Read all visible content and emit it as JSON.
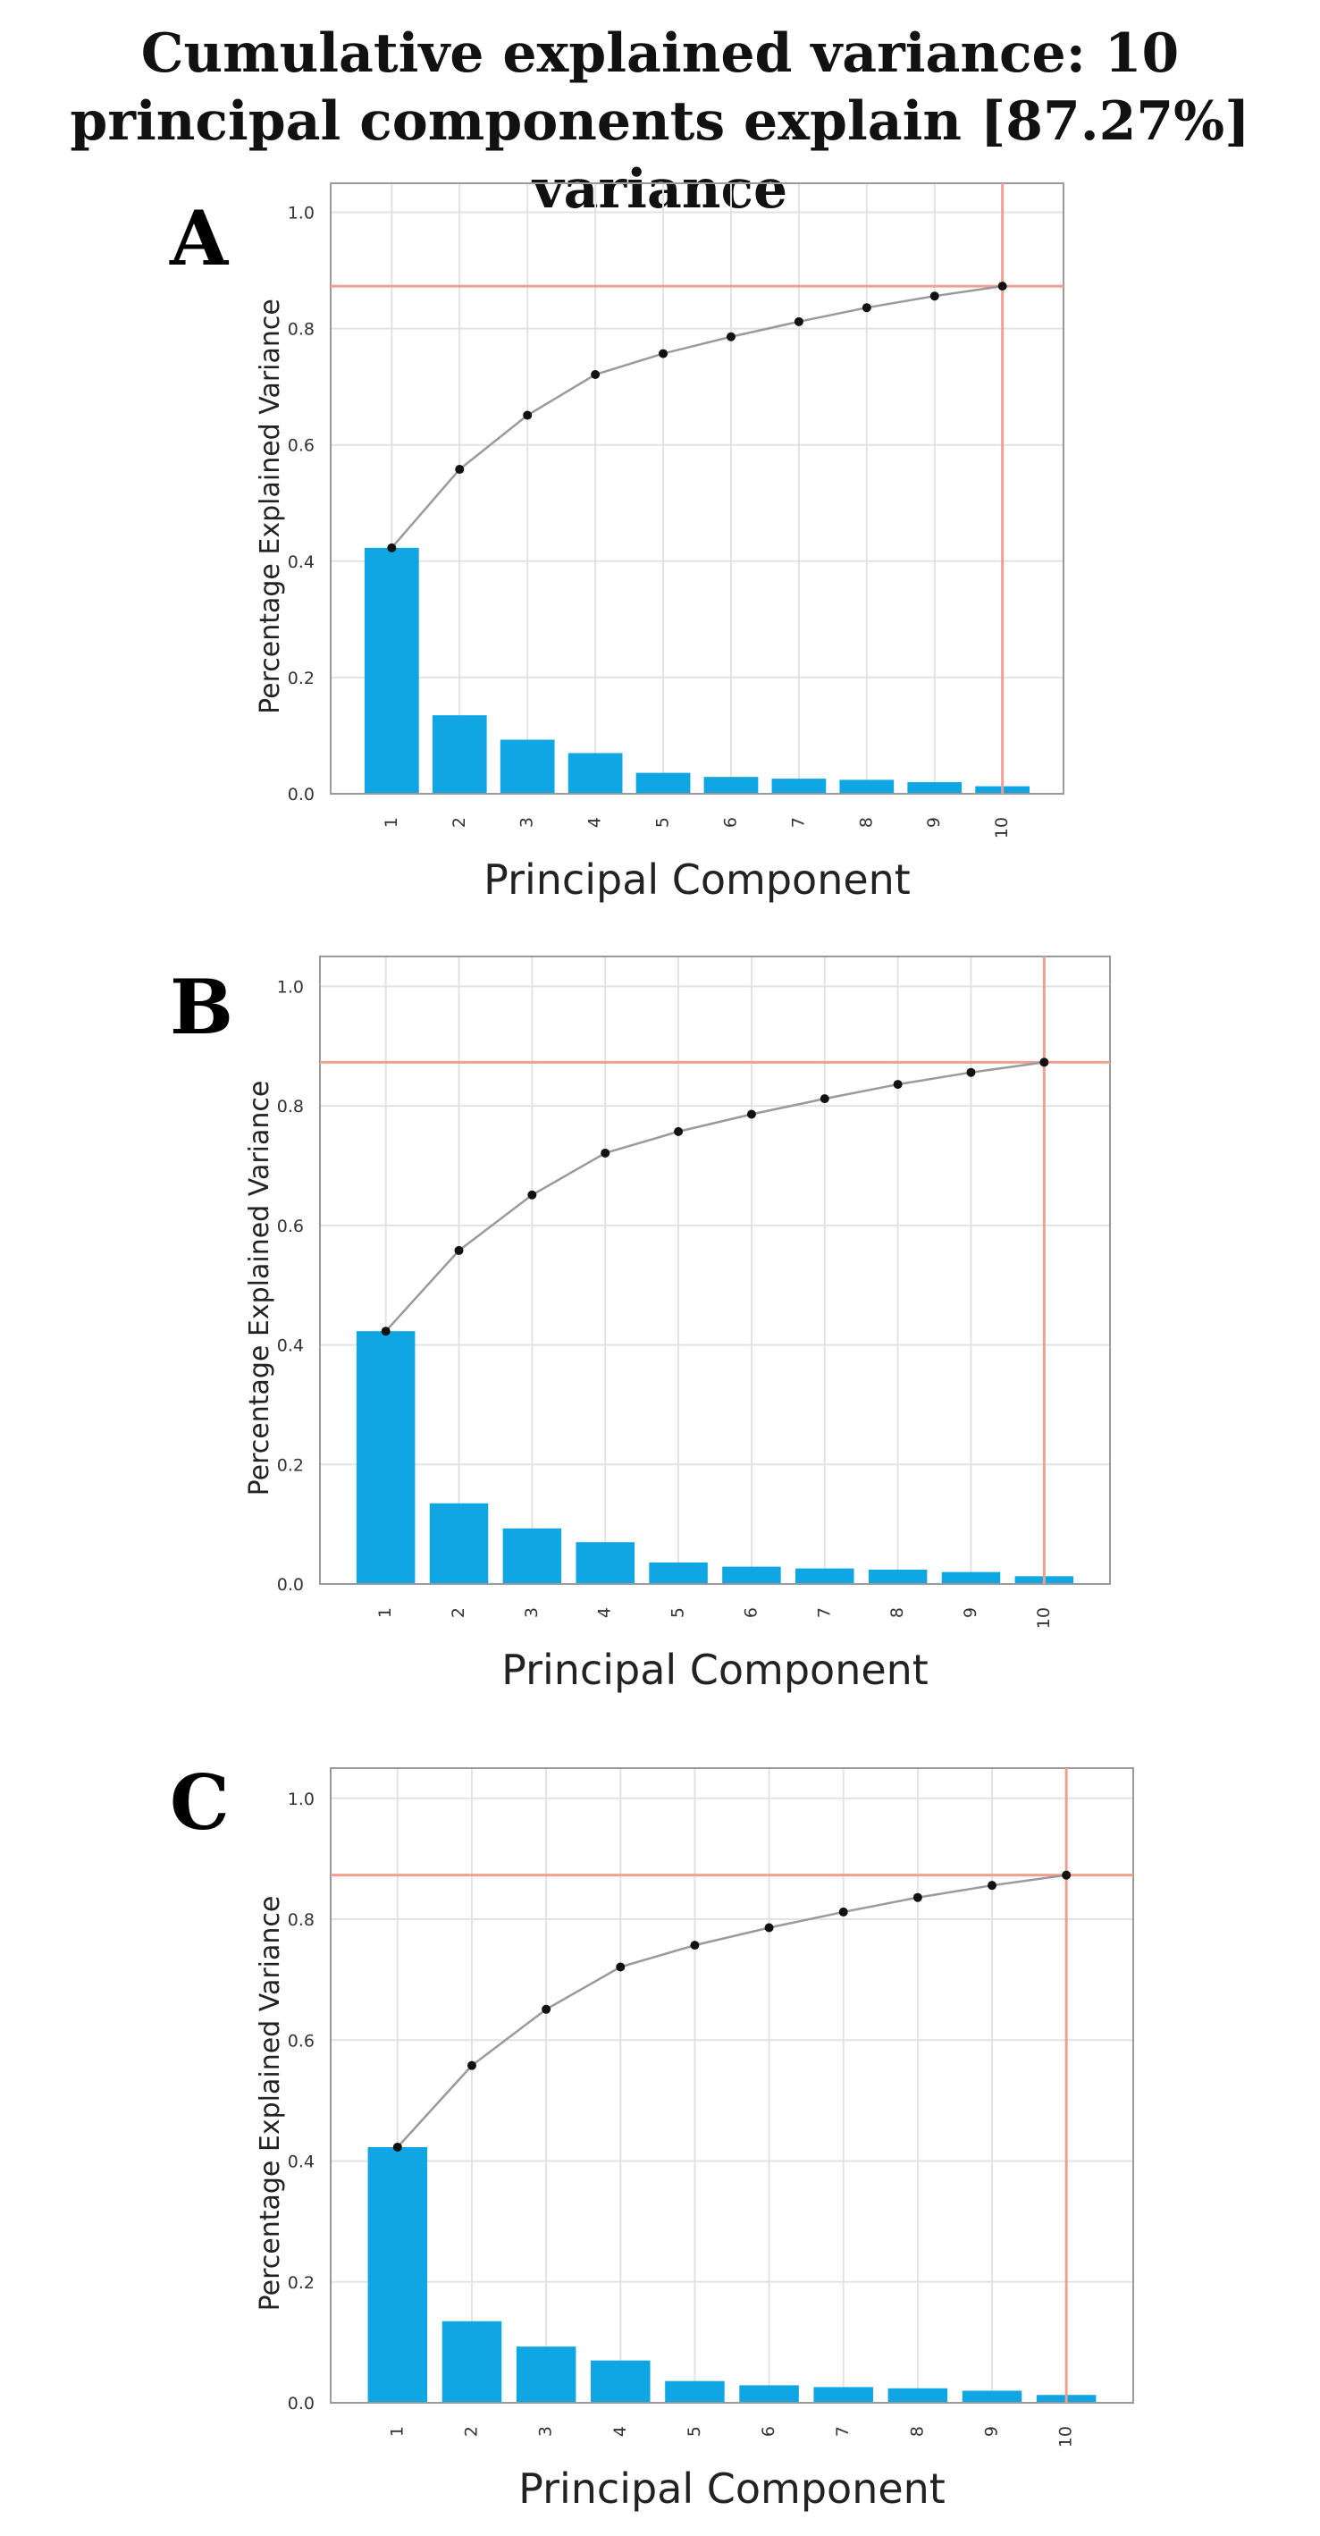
{
  "title": "Cumulative explained variance: 10 principal components explain [87.27%] variance",
  "colors": {
    "bar": "#10a6e4",
    "cumulative_line": "#9a9a9a",
    "marker": "#111111",
    "threshold": "#f0a090",
    "grid": "#e3e3e3",
    "axis_text": "#333333"
  },
  "chart_data": [
    {
      "panel_label": "A",
      "type": "bar",
      "categories": [
        "1",
        "2",
        "3",
        "4",
        "5",
        "6",
        "7",
        "8",
        "9",
        "10"
      ],
      "series": [
        {
          "name": "explained variance",
          "values": [
            0.423,
            0.135,
            0.093,
            0.07,
            0.036,
            0.029,
            0.026,
            0.024,
            0.02,
            0.013
          ]
        },
        {
          "name": "cumulative explained variance",
          "values": [
            0.423,
            0.558,
            0.651,
            0.721,
            0.757,
            0.786,
            0.812,
            0.836,
            0.856,
            0.873
          ]
        }
      ],
      "threshold": {
        "x": "10",
        "y": 0.873
      },
      "xlabel": "Principal Component",
      "ylabel": "Percentage Explained Variance",
      "ylim": [
        0,
        1.05
      ],
      "yticks": [
        "0.0",
        "0.2",
        "0.4",
        "0.6",
        "0.8",
        "1.0"
      ],
      "grid": true
    },
    {
      "panel_label": "B",
      "type": "bar",
      "categories": [
        "1",
        "2",
        "3",
        "4",
        "5",
        "6",
        "7",
        "8",
        "9",
        "10"
      ],
      "series": [
        {
          "name": "explained variance",
          "values": [
            0.423,
            0.135,
            0.093,
            0.07,
            0.036,
            0.029,
            0.026,
            0.024,
            0.02,
            0.013
          ]
        },
        {
          "name": "cumulative explained variance",
          "values": [
            0.423,
            0.558,
            0.651,
            0.721,
            0.757,
            0.786,
            0.812,
            0.836,
            0.856,
            0.873
          ]
        }
      ],
      "threshold": {
        "x": "10",
        "y": 0.873
      },
      "xlabel": "Principal Component",
      "ylabel": "Percentage Explained Variance",
      "ylim": [
        0,
        1.05
      ],
      "yticks": [
        "0.0",
        "0.2",
        "0.4",
        "0.6",
        "0.8",
        "1.0"
      ],
      "grid": true
    },
    {
      "panel_label": "C",
      "type": "bar",
      "categories": [
        "1",
        "2",
        "3",
        "4",
        "5",
        "6",
        "7",
        "8",
        "9",
        "10"
      ],
      "series": [
        {
          "name": "explained variance",
          "values": [
            0.423,
            0.135,
            0.093,
            0.07,
            0.036,
            0.029,
            0.026,
            0.024,
            0.02,
            0.013
          ]
        },
        {
          "name": "cumulative explained variance",
          "values": [
            0.423,
            0.558,
            0.651,
            0.721,
            0.757,
            0.786,
            0.812,
            0.836,
            0.856,
            0.873
          ]
        }
      ],
      "threshold": {
        "x": "10",
        "y": 0.873
      },
      "xlabel": "Principal Component",
      "ylabel": "Percentage Explained Variance",
      "ylim": [
        0,
        1.05
      ],
      "yticks": [
        "0.0",
        "0.2",
        "0.4",
        "0.6",
        "0.8",
        "1.0"
      ],
      "grid": true
    }
  ]
}
